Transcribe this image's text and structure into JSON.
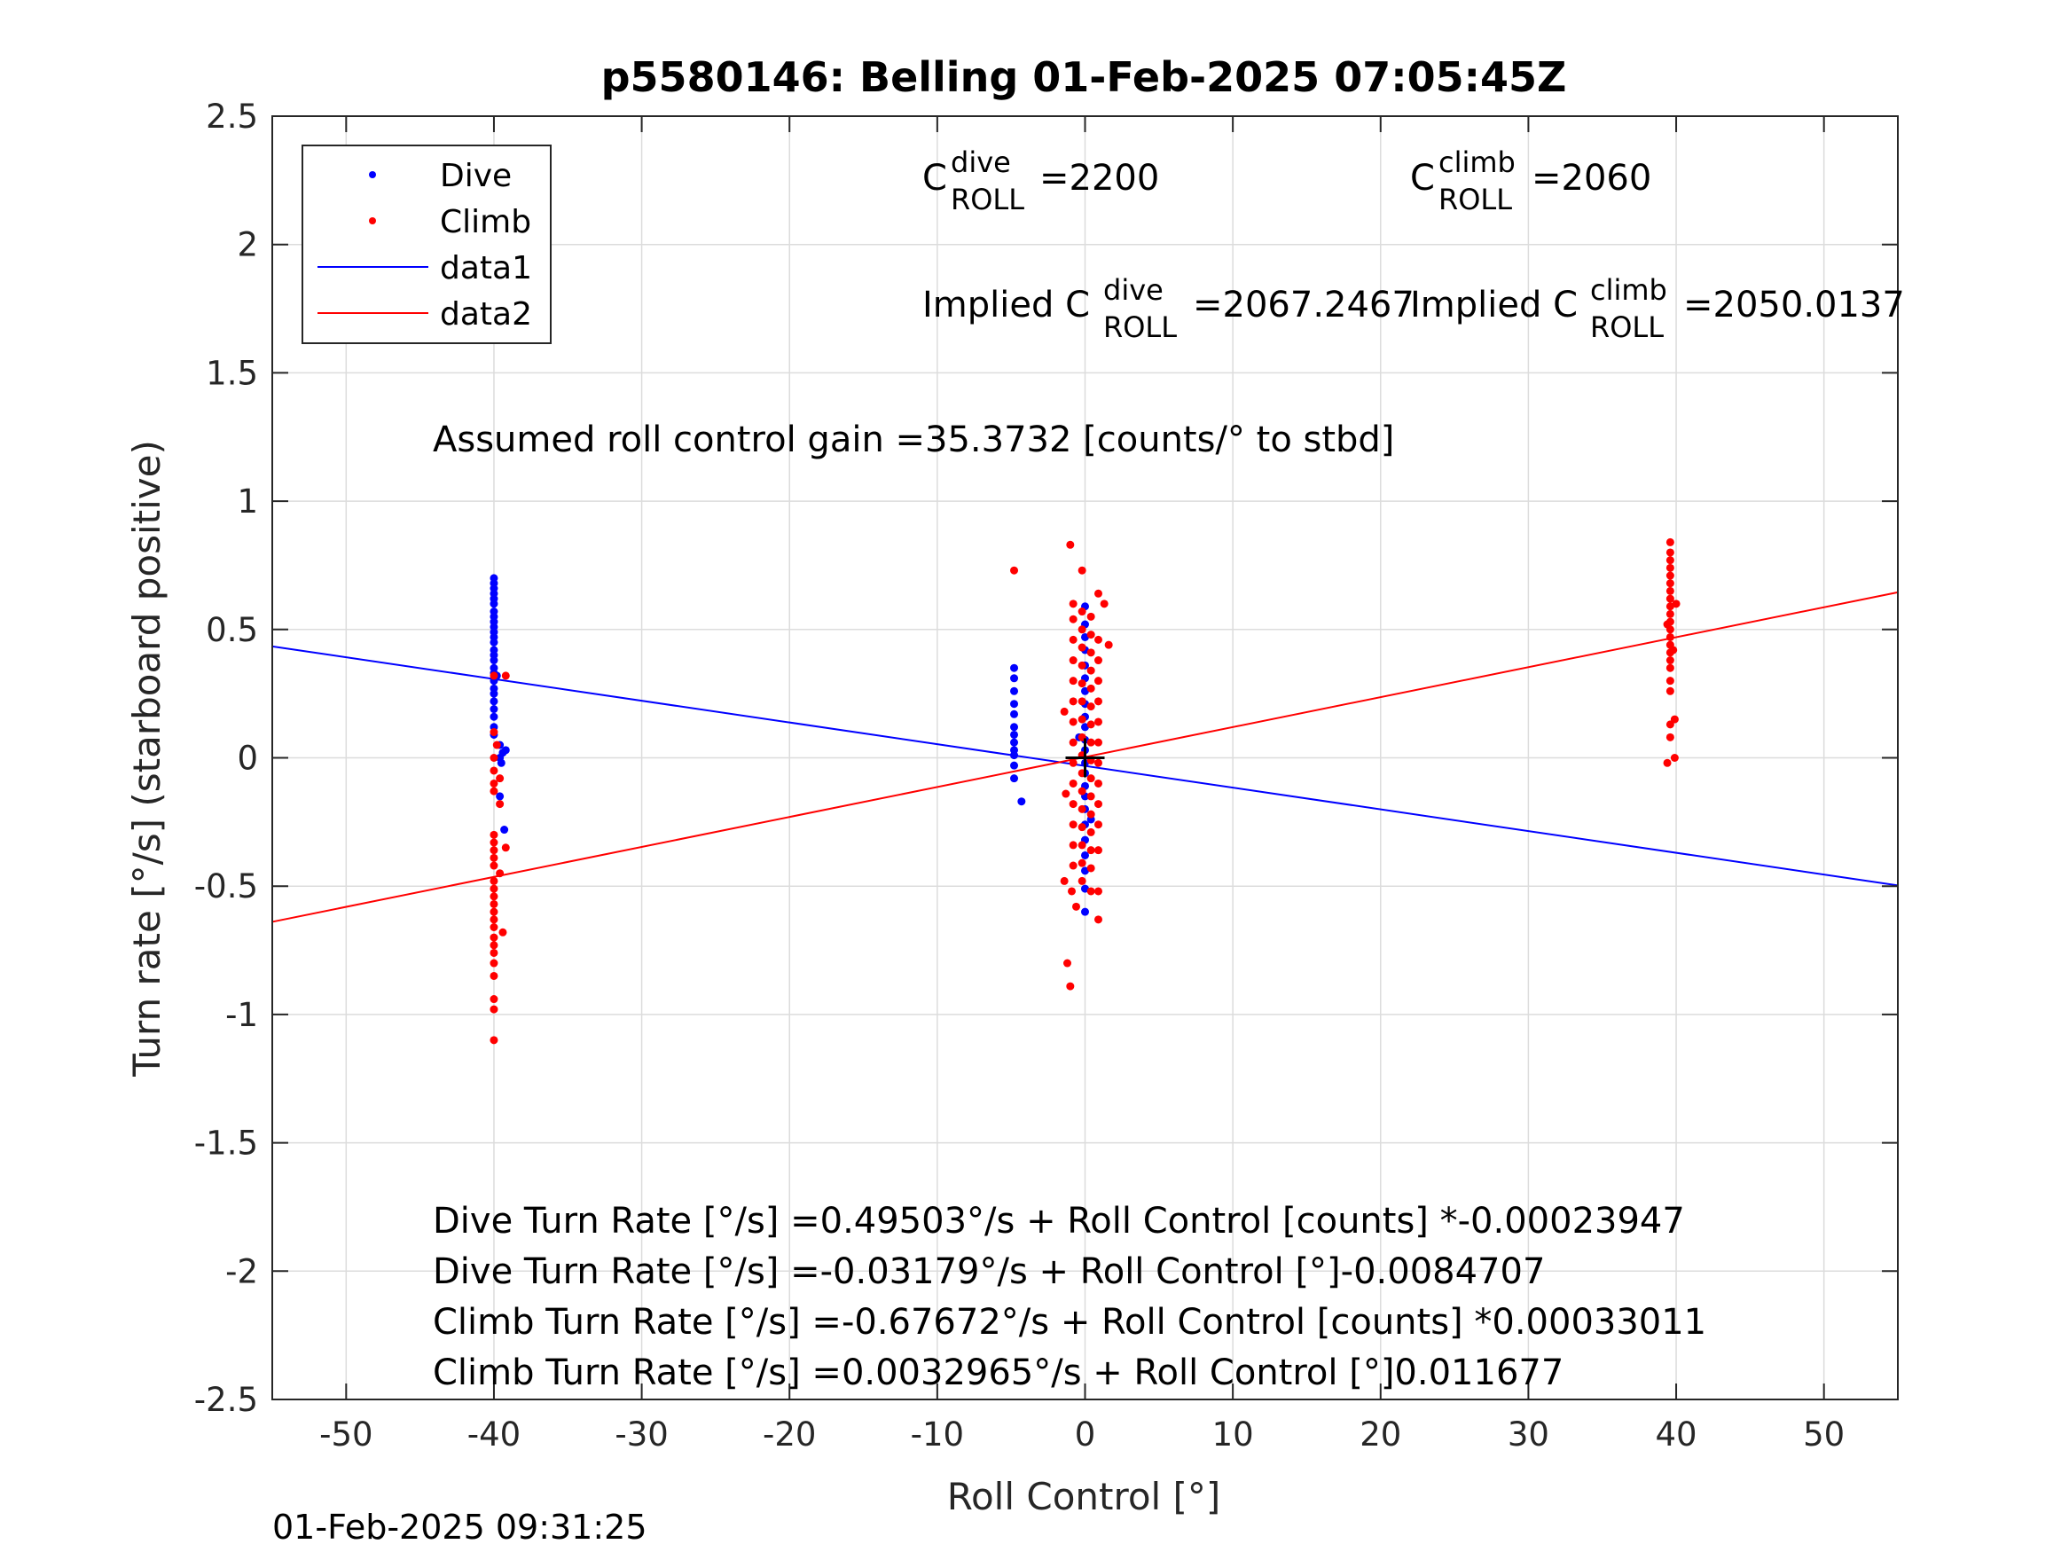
{
  "chart_data": {
    "type": "scatter",
    "title": "p5580146: Belling 01-Feb-2025 07:05:45Z",
    "xlabel": "Roll Control [°]",
    "ylabel": "Turn rate [°/s] (starboard positive)",
    "xlim": [
      -55,
      55
    ],
    "ylim": [
      -2.5,
      2.5
    ],
    "xticks": [
      -50,
      -40,
      -30,
      -20,
      -10,
      0,
      10,
      20,
      30,
      40,
      50
    ],
    "yticks": [
      -2.5,
      -2,
      -1.5,
      -1,
      -0.5,
      0,
      0.5,
      1,
      1.5,
      2,
      2.5
    ],
    "grid": true,
    "legend_position": "top-left",
    "legend": [
      "Dive",
      "Climb",
      "data1",
      "data2"
    ],
    "series": [
      {
        "name": "Dive",
        "kind": "points",
        "color": "#0000ff",
        "points": [
          [
            -40,
            0.7
          ],
          [
            -40,
            0.68
          ],
          [
            -40,
            0.66
          ],
          [
            -40,
            0.64
          ],
          [
            -40,
            0.62
          ],
          [
            -40,
            0.6
          ],
          [
            -40,
            0.57
          ],
          [
            -40,
            0.55
          ],
          [
            -40,
            0.53
          ],
          [
            -40,
            0.51
          ],
          [
            -40,
            0.49
          ],
          [
            -40,
            0.47
          ],
          [
            -40,
            0.45
          ],
          [
            -40,
            0.42
          ],
          [
            -40,
            0.4
          ],
          [
            -40,
            0.38
          ],
          [
            -40,
            0.35
          ],
          [
            -40,
            0.33
          ],
          [
            -40,
            0.3
          ],
          [
            -40,
            0.27
          ],
          [
            -40,
            0.25
          ],
          [
            -40,
            0.22
          ],
          [
            -40,
            0.19
          ],
          [
            -40,
            0.16
          ],
          [
            -40,
            0.12
          ],
          [
            -40,
            0.09
          ],
          [
            -39.6,
            0.05
          ],
          [
            -39.4,
            0.02
          ],
          [
            -39.2,
            0.03
          ],
          [
            -39.5,
            -0.02
          ],
          [
            -39.6,
            -0.15
          ],
          [
            -39.3,
            -0.28
          ],
          [
            -39.8,
            0.32
          ],
          [
            -39.6,
            0.0
          ],
          [
            -4.8,
            0.35
          ],
          [
            -4.8,
            0.31
          ],
          [
            -4.8,
            0.26
          ],
          [
            -4.8,
            0.21
          ],
          [
            -4.8,
            0.17
          ],
          [
            -4.8,
            0.12
          ],
          [
            -4.8,
            0.09
          ],
          [
            -4.8,
            0.06
          ],
          [
            -4.8,
            0.03
          ],
          [
            -4.8,
            0.01
          ],
          [
            -4.8,
            -0.03
          ],
          [
            -4.8,
            -0.08
          ],
          [
            -4.3,
            -0.17
          ],
          [
            0,
            0.59
          ],
          [
            0,
            0.52
          ],
          [
            0,
            0.47
          ],
          [
            0,
            0.42
          ],
          [
            0,
            0.36
          ],
          [
            0,
            0.31
          ],
          [
            0,
            0.26
          ],
          [
            0,
            0.21
          ],
          [
            0,
            0.16
          ],
          [
            0,
            0.12
          ],
          [
            0,
            0.07
          ],
          [
            0,
            0.03
          ],
          [
            0,
            -0.02
          ],
          [
            0,
            -0.06
          ],
          [
            0,
            -0.11
          ],
          [
            0,
            -0.15
          ],
          [
            0,
            -0.2
          ],
          [
            0,
            -0.26
          ],
          [
            0,
            -0.32
          ],
          [
            0,
            -0.38
          ],
          [
            0,
            -0.44
          ],
          [
            0,
            -0.51
          ],
          [
            0,
            -0.6
          ],
          [
            0.4,
            -0.24
          ],
          [
            -0.4,
            0.08
          ]
        ]
      },
      {
        "name": "Climb",
        "kind": "points",
        "color": "#ff0000",
        "points": [
          [
            -40,
            0.32
          ],
          [
            -40,
            0.1
          ],
          [
            -39.8,
            0.05
          ],
          [
            -40,
            0.0
          ],
          [
            -40,
            -0.05
          ],
          [
            -39.6,
            -0.08
          ],
          [
            -40,
            -0.1
          ],
          [
            -40,
            -0.13
          ],
          [
            -39.6,
            -0.18
          ],
          [
            -40,
            -0.3
          ],
          [
            -40,
            -0.33
          ],
          [
            -40,
            -0.36
          ],
          [
            -40,
            -0.39
          ],
          [
            -40,
            -0.42
          ],
          [
            -39.6,
            -0.45
          ],
          [
            -40,
            -0.48
          ],
          [
            -40,
            -0.51
          ],
          [
            -40,
            -0.54
          ],
          [
            -40,
            -0.57
          ],
          [
            -40,
            -0.6
          ],
          [
            -40,
            -0.63
          ],
          [
            -40,
            -0.66
          ],
          [
            -40,
            -0.7
          ],
          [
            -40,
            -0.73
          ],
          [
            -40,
            -0.76
          ],
          [
            -40,
            -0.8
          ],
          [
            -40,
            -0.85
          ],
          [
            -40,
            -0.94
          ],
          [
            -40,
            -0.98
          ],
          [
            -40,
            -1.1
          ],
          [
            -39.2,
            -0.35
          ],
          [
            -39.2,
            0.32
          ],
          [
            -39.4,
            -0.68
          ],
          [
            -4.8,
            0.73
          ],
          [
            -1.0,
            0.83
          ],
          [
            -1.2,
            -0.8
          ],
          [
            -1.0,
            -0.89
          ],
          [
            -1.4,
            -0.48
          ],
          [
            -0.9,
            -0.52
          ],
          [
            -0.6,
            -0.58
          ],
          [
            -0.8,
            0.6
          ],
          [
            -0.8,
            0.54
          ],
          [
            -0.8,
            0.46
          ],
          [
            -0.8,
            0.38
          ],
          [
            -0.8,
            0.3
          ],
          [
            -0.8,
            0.22
          ],
          [
            -0.8,
            0.14
          ],
          [
            -0.8,
            0.06
          ],
          [
            -0.8,
            -0.02
          ],
          [
            -0.8,
            -0.1
          ],
          [
            -0.8,
            -0.18
          ],
          [
            -0.8,
            -0.26
          ],
          [
            -0.8,
            -0.34
          ],
          [
            -0.8,
            -0.42
          ],
          [
            -0.2,
            0.73
          ],
          [
            -0.2,
            0.57
          ],
          [
            -0.2,
            0.5
          ],
          [
            -0.2,
            0.43
          ],
          [
            -0.2,
            0.36
          ],
          [
            -0.2,
            0.29
          ],
          [
            -0.2,
            0.22
          ],
          [
            -0.2,
            0.15
          ],
          [
            -0.2,
            0.08
          ],
          [
            -0.2,
            0.01
          ],
          [
            -0.2,
            -0.06
          ],
          [
            -0.2,
            -0.13
          ],
          [
            -0.2,
            -0.2
          ],
          [
            -0.2,
            -0.27
          ],
          [
            -0.2,
            -0.34
          ],
          [
            -0.2,
            -0.41
          ],
          [
            -0.2,
            -0.48
          ],
          [
            0.4,
            0.55
          ],
          [
            0.4,
            0.48
          ],
          [
            0.4,
            0.41
          ],
          [
            0.4,
            0.34
          ],
          [
            0.4,
            0.27
          ],
          [
            0.4,
            0.2
          ],
          [
            0.4,
            0.13
          ],
          [
            0.4,
            0.06
          ],
          [
            0.4,
            -0.01
          ],
          [
            0.4,
            -0.08
          ],
          [
            0.4,
            -0.15
          ],
          [
            0.4,
            -0.22
          ],
          [
            0.4,
            -0.29
          ],
          [
            0.4,
            -0.36
          ],
          [
            0.4,
            -0.43
          ],
          [
            0.4,
            -0.52
          ],
          [
            0.9,
            0.64
          ],
          [
            0.9,
            0.46
          ],
          [
            0.9,
            0.38
          ],
          [
            0.9,
            0.3
          ],
          [
            0.9,
            0.22
          ],
          [
            0.9,
            0.14
          ],
          [
            0.9,
            0.06
          ],
          [
            0.9,
            -0.02
          ],
          [
            0.9,
            -0.1
          ],
          [
            0.9,
            -0.18
          ],
          [
            0.9,
            -0.26
          ],
          [
            0.9,
            -0.36
          ],
          [
            0.9,
            -0.52
          ],
          [
            0.9,
            -0.63
          ],
          [
            1.3,
            0.6
          ],
          [
            1.6,
            0.44
          ],
          [
            -1.4,
            0.18
          ],
          [
            -1.3,
            -0.14
          ],
          [
            39.6,
            0.84
          ],
          [
            39.6,
            0.8
          ],
          [
            39.6,
            0.77
          ],
          [
            39.6,
            0.74
          ],
          [
            39.6,
            0.71
          ],
          [
            39.6,
            0.68
          ],
          [
            39.6,
            0.65
          ],
          [
            39.6,
            0.62
          ],
          [
            39.6,
            0.59
          ],
          [
            39.6,
            0.56
          ],
          [
            39.6,
            0.53
          ],
          [
            39.6,
            0.5
          ],
          [
            39.6,
            0.47
          ],
          [
            39.6,
            0.44
          ],
          [
            39.6,
            0.41
          ],
          [
            39.6,
            0.38
          ],
          [
            39.6,
            0.35
          ],
          [
            39.6,
            0.3
          ],
          [
            39.6,
            0.26
          ],
          [
            39.6,
            0.13
          ],
          [
            39.6,
            0.08
          ],
          [
            39.4,
            -0.02
          ],
          [
            39.9,
            0.15
          ],
          [
            39.9,
            0.0
          ],
          [
            40.0,
            0.6
          ],
          [
            39.8,
            0.42
          ],
          [
            39.4,
            0.52
          ]
        ]
      },
      {
        "name": "data1",
        "kind": "line",
        "color": "#0000ff",
        "points": [
          [
            -55,
            0.434
          ],
          [
            55,
            -0.497
          ]
        ]
      },
      {
        "name": "data2",
        "kind": "line",
        "color": "#ff0000",
        "points": [
          [
            -55,
            -0.639
          ],
          [
            55,
            0.645
          ]
        ]
      }
    ],
    "origin_marker": {
      "x": 0,
      "y": 0,
      "color": "#000000"
    },
    "annotations": {
      "c_dive": {
        "base": "C",
        "sup": "dive",
        "sub": "ROLL",
        "value": "=2200"
      },
      "c_climb": {
        "base": "C",
        "sup": "climb",
        "sub": "ROLL",
        "value": "=2060"
      },
      "implied_dive": {
        "prefix": "Implied C",
        "sup": "dive",
        "sub": "ROLL",
        "value": "=2067.2467"
      },
      "implied_climb": {
        "prefix": "Implied C",
        "sup": "climb",
        "sub": "ROLL",
        "value": "=2050.0137"
      },
      "gain": "Assumed roll control gain =35.3732 [counts/° to stbd]",
      "eq1": "Dive Turn Rate [°/s] =0.49503°/s + Roll Control [counts] *-0.00023947",
      "eq2": "Dive Turn Rate [°/s] =-0.03179°/s + Roll Control [°]-0.0084707",
      "eq3": "Climb Turn Rate [°/s] =-0.67672°/s + Roll Control [counts] *0.00033011",
      "eq4": "Climb Turn Rate [°/s] =0.0032965°/s + Roll Control [°]0.011677"
    }
  },
  "timestamp": "01-Feb-2025 09:31:25"
}
